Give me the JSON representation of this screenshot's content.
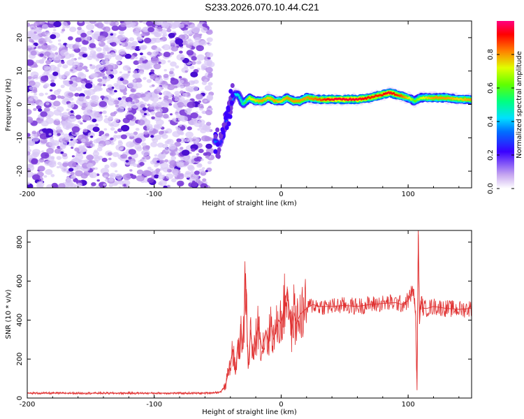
{
  "title": "S233.2026.070.10.44.C21",
  "chart_data": [
    {
      "type": "heatmap",
      "xlabel": "Height of straight line (km)",
      "ylabel": "Frequency (Hz)",
      "xlim": [
        -200,
        150
      ],
      "ylim": [
        -25,
        25
      ],
      "xticks": [
        -200,
        -100,
        0,
        100
      ],
      "yticks": [
        -20,
        -10,
        0,
        10,
        20
      ],
      "colorbar": {
        "label": "Normalized spectral amplitude",
        "range": [
          0,
          1
        ],
        "ticks": [
          "0.0",
          "0.2",
          "0.4",
          "0.6",
          "0.8"
        ],
        "tick_values": [
          0.0,
          0.2,
          0.4,
          0.6,
          0.8
        ]
      },
      "noise_region_x": [
        -200,
        -55
      ],
      "ridge": {
        "x": [
          -52,
          -48,
          -45,
          -42,
          -40,
          -37,
          -34,
          -30,
          -25,
          -20,
          -15,
          -10,
          -5,
          0,
          5,
          10,
          15,
          20,
          30,
          40,
          50,
          60,
          70,
          80,
          85,
          90,
          95,
          100,
          105,
          110,
          120,
          130,
          140,
          150
        ],
        "freq": [
          -11,
          -12,
          -8,
          -3,
          0,
          3,
          3,
          0,
          2,
          1,
          1,
          2,
          1,
          1,
          2,
          1,
          1,
          2,
          1.5,
          1.5,
          1.5,
          1.5,
          2,
          3,
          3.5,
          3,
          2.5,
          2,
          1,
          2,
          2,
          2,
          1.5,
          1.5
        ],
        "amp": [
          0.35,
          0.25,
          0.3,
          0.35,
          0.35,
          0.4,
          0.45,
          0.5,
          0.7,
          0.75,
          0.8,
          0.75,
          0.8,
          0.75,
          0.8,
          0.8,
          0.8,
          0.8,
          0.85,
          0.95,
          0.95,
          0.95,
          0.9,
          0.9,
          0.95,
          0.9,
          0.85,
          0.75,
          0.6,
          0.7,
          0.8,
          0.8,
          0.75,
          0.8
        ]
      }
    },
    {
      "type": "line",
      "xlabel": "Height of straight line (km)",
      "ylabel": "SNR (10 * v/v)",
      "xlim": [
        -200,
        150
      ],
      "ylim": [
        0,
        860
      ],
      "xticks": [
        -200,
        -100,
        0,
        100
      ],
      "yticks": [
        0,
        200,
        400,
        600,
        800
      ],
      "series": [
        {
          "name": "SNR",
          "color": "#e03030",
          "x": [
            -200,
            -150,
            -100,
            -60,
            -48,
            -44,
            -40,
            -38,
            -36,
            -34,
            -33,
            -32,
            -30,
            -28,
            -26,
            -25,
            -24,
            -22,
            -20,
            -18,
            -15,
            -12,
            -10,
            -8,
            -6,
            -4,
            -2,
            0,
            5,
            8,
            10,
            12,
            15,
            20,
            25,
            30,
            40,
            50,
            60,
            70,
            80,
            90,
            95,
            100,
            104,
            106,
            107,
            108,
            109,
            110,
            112,
            115,
            120,
            130,
            140,
            150
          ],
          "values": [
            25,
            25,
            25,
            25,
            30,
            60,
            180,
            250,
            120,
            300,
            200,
            380,
            250,
            640,
            150,
            250,
            350,
            200,
            300,
            380,
            250,
            350,
            280,
            400,
            300,
            350,
            400,
            380,
            560,
            330,
            440,
            380,
            430,
            460,
            480,
            470,
            470,
            475,
            470,
            480,
            485,
            490,
            480,
            500,
            560,
            420,
            40,
            860,
            380,
            500,
            460,
            460,
            470,
            460,
            455,
            460
          ]
        }
      ]
    }
  ]
}
